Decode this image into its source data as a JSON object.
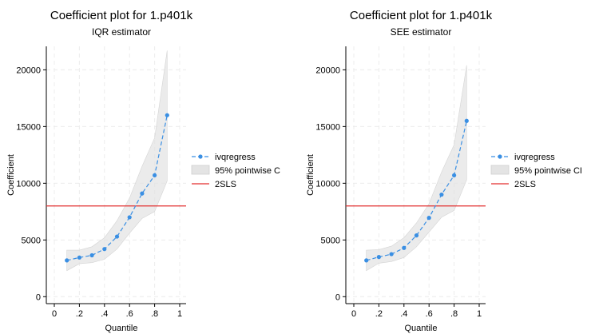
{
  "chart_data": [
    {
      "type": "line",
      "title": "Coefficient plot for 1.p401k",
      "subtitle": "IQR estimator",
      "xlabel": "Quantile",
      "ylabel": "Coefficient",
      "xlim": [
        0,
        1
      ],
      "ylim": [
        0,
        22000
      ],
      "xticks": [
        0,
        0.2,
        0.4,
        0.6,
        0.8,
        1
      ],
      "xtick_labels": [
        "0",
        ".2",
        ".4",
        ".6",
        ".8",
        "1"
      ],
      "yticks": [
        0,
        5000,
        10000,
        15000,
        20000
      ],
      "ytick_labels": [
        "0",
        "5000",
        "10000",
        "15000",
        "20000"
      ],
      "grid": true,
      "legend_position": "right",
      "series": [
        {
          "name": "ivqregress",
          "kind": "line-markers",
          "color": "#3a8fe3",
          "x": [
            0.1,
            0.2,
            0.3,
            0.4,
            0.5,
            0.6,
            0.7,
            0.8,
            0.9
          ],
          "y": [
            3200,
            3450,
            3650,
            4200,
            5300,
            7000,
            9100,
            10700,
            16000
          ]
        },
        {
          "name": "95% pointwise C",
          "kind": "band",
          "color": "#e4e4e4",
          "x": [
            0.1,
            0.2,
            0.3,
            0.4,
            0.5,
            0.6,
            0.7,
            0.8,
            0.9
          ],
          "lower": [
            2300,
            2900,
            3000,
            3300,
            4200,
            5600,
            6900,
            7500,
            10200
          ],
          "upper": [
            4100,
            4100,
            4400,
            5200,
            6700,
            8700,
            11500,
            14000,
            21700
          ]
        },
        {
          "name": "2SLS",
          "kind": "hline",
          "color": "#e32f2f",
          "y": 8000
        }
      ]
    },
    {
      "type": "line",
      "title": "Coefficient plot for 1.p401k",
      "subtitle": "SEE estimator",
      "xlabel": "Quantile",
      "ylabel": "Coefficient",
      "xlim": [
        0,
        1
      ],
      "ylim": [
        0,
        22000
      ],
      "xticks": [
        0,
        0.2,
        0.4,
        0.6,
        0.8,
        1
      ],
      "xtick_labels": [
        "0",
        ".2",
        ".4",
        ".6",
        ".8",
        "1"
      ],
      "yticks": [
        0,
        5000,
        10000,
        15000,
        20000
      ],
      "ytick_labels": [
        "0",
        "5000",
        "10000",
        "15000",
        "20000"
      ],
      "grid": true,
      "legend_position": "right",
      "series": [
        {
          "name": "ivqregress",
          "kind": "line-markers",
          "color": "#3a8fe3",
          "x": [
            0.1,
            0.2,
            0.3,
            0.4,
            0.5,
            0.6,
            0.7,
            0.8,
            0.9
          ],
          "y": [
            3200,
            3500,
            3750,
            4300,
            5400,
            6950,
            9000,
            10700,
            15500
          ]
        },
        {
          "name": "95% pointwise CI",
          "kind": "band",
          "color": "#e4e4e4",
          "x": [
            0.1,
            0.2,
            0.3,
            0.4,
            0.5,
            0.6,
            0.7,
            0.8,
            0.9
          ],
          "lower": [
            2300,
            2950,
            3100,
            3450,
            4400,
            5700,
            7000,
            7600,
            10300
          ],
          "upper": [
            4100,
            4150,
            4450,
            5200,
            6500,
            8200,
            11000,
            13400,
            20400
          ]
        },
        {
          "name": "2SLS",
          "kind": "hline",
          "color": "#e32f2f",
          "y": 8000
        }
      ]
    }
  ]
}
